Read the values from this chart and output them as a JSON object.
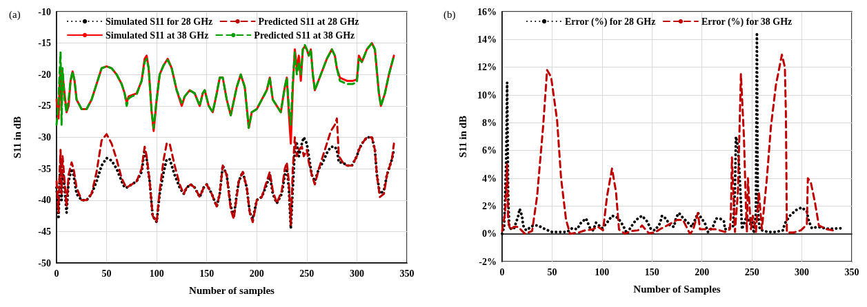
{
  "chart_data": [
    {
      "type": "line",
      "title": "(a)",
      "xlabel": "Number of samples",
      "ylabel": "S11 in dB",
      "xlim": [
        0,
        350
      ],
      "xticks": [
        0,
        50,
        100,
        150,
        200,
        250,
        300,
        350
      ],
      "ylim": [
        -50,
        -10
      ],
      "yticks": [
        -50,
        -45,
        -40,
        -35,
        -30,
        -25,
        -20,
        -15,
        -10
      ],
      "grid": true,
      "legend": "top",
      "marker": "none",
      "series": [
        {
          "name": "Simulated S11 for 28 GHz",
          "color": "#000000",
          "line_style": "dotted",
          "x": [
            0,
            2,
            3,
            4,
            5,
            6,
            8,
            10,
            12,
            15,
            17,
            20,
            25,
            30,
            35,
            40,
            45,
            50,
            55,
            60,
            65,
            68,
            70,
            75,
            80,
            85,
            88,
            90,
            93,
            96,
            100,
            103,
            107,
            110,
            113,
            118,
            123,
            127,
            130,
            134,
            138,
            143,
            147,
            150,
            155,
            160,
            163,
            166,
            170,
            174,
            177,
            182,
            186,
            190,
            193,
            196,
            200,
            205,
            210,
            213,
            216,
            220,
            225,
            228,
            230,
            232,
            234,
            236,
            238,
            240,
            242,
            245,
            247,
            250,
            252,
            255,
            258,
            262,
            266,
            270,
            274,
            278,
            280,
            282,
            286,
            290,
            295,
            300,
            302,
            305,
            310,
            315,
            318,
            320,
            323,
            327,
            330,
            335,
            337
          ],
          "values": [
            -38,
            -43,
            -37,
            -34,
            -40,
            -35,
            -38,
            -42,
            -37,
            -35,
            -36,
            -39,
            -40,
            -40,
            -39,
            -37,
            -34.5,
            -33.3,
            -33.7,
            -35,
            -37,
            -38,
            -38,
            -37.5,
            -37,
            -35.5,
            -32,
            -33.5,
            -37,
            -42.5,
            -43.5,
            -39,
            -35.5,
            -33.5,
            -33.5,
            -36,
            -38,
            -39,
            -38,
            -37.5,
            -38,
            -39.5,
            -38,
            -37.5,
            -39,
            -41,
            -39,
            -34.5,
            -36,
            -41,
            -42.5,
            -37,
            -35.5,
            -38,
            -42,
            -43,
            -40,
            -39.5,
            -37.5,
            -36,
            -39,
            -40.5,
            -39,
            -36,
            -35,
            -38,
            -44.5,
            -38,
            -32,
            -31,
            -33,
            -31,
            -30,
            -31,
            -33,
            -36,
            -37,
            -35,
            -34,
            -32.5,
            -31.5,
            -31.5,
            -32,
            -34,
            -34,
            -34.5,
            -34.5,
            -33,
            -32,
            -31,
            -30,
            -30,
            -32,
            -36,
            -39,
            -38.5,
            -36,
            -33.5,
            -32
          ]
        },
        {
          "name": "Predicted S11 at 28 GHz",
          "color": "#c00000",
          "line_style": "dashed",
          "x": [
            0,
            2,
            3,
            4,
            5,
            6,
            8,
            10,
            12,
            15,
            17,
            20,
            25,
            30,
            35,
            40,
            45,
            50,
            55,
            60,
            65,
            68,
            70,
            75,
            80,
            85,
            88,
            90,
            93,
            96,
            100,
            103,
            107,
            110,
            113,
            118,
            123,
            127,
            130,
            134,
            138,
            143,
            147,
            150,
            155,
            160,
            163,
            166,
            170,
            174,
            177,
            182,
            186,
            190,
            193,
            196,
            200,
            205,
            210,
            213,
            216,
            220,
            225,
            228,
            230,
            232,
            234,
            236,
            238,
            240,
            242,
            245,
            247,
            250,
            252,
            255,
            258,
            262,
            266,
            270,
            274,
            278,
            280,
            282,
            286,
            290,
            295,
            300,
            302,
            305,
            310,
            315,
            318,
            320,
            323,
            327,
            330,
            335,
            337
          ],
          "values": [
            -37,
            -42,
            -36,
            -32,
            -39,
            -33,
            -37,
            -41,
            -36,
            -34,
            -35,
            -38,
            -40,
            -40,
            -39,
            -35.5,
            -30.5,
            -29.5,
            -31,
            -33.5,
            -36.5,
            -37.5,
            -38,
            -37.5,
            -37,
            -35,
            -31.5,
            -33,
            -37,
            -42.5,
            -43.5,
            -38.5,
            -33.5,
            -31,
            -31,
            -34.5,
            -37.5,
            -39,
            -38,
            -37.5,
            -38,
            -39.5,
            -38,
            -37.5,
            -39,
            -41,
            -39,
            -34.5,
            -36,
            -41.5,
            -43,
            -37,
            -35.5,
            -38,
            -42,
            -43.5,
            -40,
            -39.5,
            -37,
            -35.5,
            -38.5,
            -40.5,
            -38.5,
            -35,
            -34,
            -37,
            -44,
            -35,
            -30,
            -33,
            -32,
            -31.5,
            -33,
            -32,
            -34,
            -36,
            -37.5,
            -35,
            -33,
            -31,
            -29,
            -28,
            -27,
            -33,
            -34,
            -34.5,
            -34.5,
            -33,
            -32,
            -31,
            -30,
            -30,
            -32,
            -36,
            -39.5,
            -39,
            -36,
            -33.5,
            -31
          ]
        },
        {
          "name": "Simulated S11 at 38 GHz",
          "color": "#ff0000",
          "line_style": "solid",
          "x": [
            0,
            2,
            3,
            4,
            5,
            6,
            8,
            10,
            12,
            14,
            16,
            18,
            20,
            25,
            30,
            35,
            40,
            45,
            50,
            55,
            60,
            65,
            68,
            70,
            72,
            75,
            80,
            85,
            88,
            90,
            92,
            95,
            97,
            100,
            103,
            107,
            111,
            115,
            120,
            125,
            128,
            133,
            138,
            143,
            146,
            148,
            152,
            156,
            160,
            163,
            166,
            170,
            174,
            180,
            184,
            188,
            192,
            195,
            200,
            205,
            210,
            213,
            216,
            220,
            224,
            228,
            230,
            232,
            234,
            236,
            238,
            240,
            242,
            244,
            246,
            248,
            250,
            252,
            254,
            256,
            258,
            264,
            270,
            275,
            278,
            280,
            283,
            290,
            296,
            300,
            302,
            305,
            310,
            315,
            318,
            322,
            324,
            328,
            332,
            337
          ],
          "values": [
            -24,
            -27,
            -22,
            -19,
            -25,
            -20,
            -23,
            -26,
            -25,
            -21,
            -19.5,
            -21,
            -24,
            -25.5,
            -25.5,
            -24,
            -21.5,
            -19,
            -18.7,
            -19,
            -20,
            -21.5,
            -23,
            -24.5,
            -23.5,
            -23.3,
            -23,
            -21,
            -17.5,
            -17,
            -19,
            -26,
            -29,
            -24,
            -20,
            -18.5,
            -17.5,
            -19,
            -22.5,
            -25,
            -23.5,
            -22.5,
            -23,
            -25,
            -23,
            -22.5,
            -25,
            -26,
            -23,
            -20.5,
            -20.5,
            -24,
            -26.5,
            -22,
            -20,
            -22,
            -28.5,
            -26,
            -25.5,
            -24,
            -22.5,
            -20.5,
            -24,
            -25,
            -26,
            -22,
            -20.5,
            -26,
            -31,
            -22,
            -16,
            -19,
            -17,
            -21,
            -16,
            -15.5,
            -16,
            -17,
            -16,
            -20,
            -22.5,
            -20,
            -17.5,
            -16,
            -17,
            -19,
            -20.5,
            -21,
            -21,
            -20.8,
            -17,
            -18,
            -16,
            -15,
            -16,
            -23,
            -25,
            -23,
            -20,
            -17
          ]
        },
        {
          "name": "Predicted S11 at 38 GHz",
          "color": "#00a000",
          "line_style": "dashed",
          "x": [
            0,
            2,
            3,
            4,
            5,
            6,
            8,
            10,
            12,
            14,
            16,
            18,
            20,
            25,
            30,
            35,
            40,
            45,
            50,
            55,
            60,
            65,
            68,
            70,
            72,
            75,
            80,
            85,
            88,
            90,
            92,
            95,
            97,
            100,
            103,
            107,
            111,
            115,
            120,
            125,
            128,
            133,
            138,
            143,
            146,
            148,
            152,
            156,
            160,
            163,
            166,
            170,
            174,
            180,
            184,
            188,
            192,
            195,
            200,
            205,
            210,
            213,
            216,
            220,
            224,
            228,
            230,
            232,
            234,
            236,
            238,
            240,
            242,
            244,
            246,
            248,
            250,
            252,
            254,
            256,
            258,
            264,
            270,
            275,
            278,
            280,
            283,
            290,
            296,
            300,
            302,
            305,
            310,
            315,
            318,
            322,
            324,
            328,
            332,
            337
          ],
          "values": [
            -28,
            -24,
            -20,
            -16.5,
            -28,
            -19,
            -24,
            -26,
            -24,
            -21,
            -19.5,
            -21,
            -24,
            -25.5,
            -25.5,
            -24,
            -21.5,
            -19,
            -18.7,
            -19,
            -20,
            -21.5,
            -23,
            -25,
            -23.8,
            -23.5,
            -23.2,
            -21,
            -18,
            -17.5,
            -19,
            -26,
            -28.5,
            -24,
            -20,
            -18.5,
            -17.7,
            -19,
            -22.5,
            -24.5,
            -23.5,
            -22.5,
            -23,
            -25,
            -23,
            -22.5,
            -25,
            -26,
            -23,
            -20.5,
            -20.5,
            -24,
            -26.5,
            -22,
            -20,
            -22,
            -28.5,
            -26,
            -25.5,
            -24,
            -22.5,
            -20.5,
            -24,
            -25,
            -26,
            -22,
            -20.5,
            -25,
            -28,
            -21,
            -16.5,
            -20,
            -18,
            -20,
            -16,
            -15.3,
            -16,
            -17,
            -16,
            -20,
            -22.5,
            -20,
            -17.5,
            -16,
            -17,
            -19,
            -21,
            -21.5,
            -21.5,
            -21.2,
            -17.5,
            -18,
            -16,
            -15,
            -16,
            -23,
            -25,
            -23,
            -20,
            -17
          ]
        }
      ]
    },
    {
      "type": "line",
      "title": "(b)",
      "xlabel": "Number of Samples",
      "ylabel": "S11 in dB",
      "xlim": [
        0,
        350
      ],
      "xticks": [
        0,
        50,
        100,
        150,
        200,
        250,
        300,
        350
      ],
      "ylim": [
        -2,
        16
      ],
      "yticks": [
        {
          "value": -2,
          "label": "-2%"
        },
        {
          "value": 0,
          "label": "0%"
        },
        {
          "value": 2,
          "label": "2%"
        },
        {
          "value": 4,
          "label": "4%"
        },
        {
          "value": 6,
          "label": "6%"
        },
        {
          "value": 8,
          "label": "8%"
        },
        {
          "value": 10,
          "label": "10%"
        },
        {
          "value": 12,
          "label": "12%"
        },
        {
          "value": 14,
          "label": "14%"
        },
        {
          "value": 16,
          "label": "16%"
        }
      ],
      "grid": true,
      "legend": "top",
      "marker": "none",
      "series": [
        {
          "name": "Error (%) for 28 GHz",
          "color": "#000000",
          "line_style": "dotted",
          "x": [
            0,
            2,
            4,
            5,
            6,
            7,
            9,
            12,
            16,
            17.5,
            20,
            21,
            24,
            31,
            36,
            43,
            50,
            57,
            65,
            70,
            75,
            79,
            84,
            88,
            91,
            94,
            100,
            105,
            110,
            116,
            121,
            125,
            129,
            134,
            140,
            145,
            149,
            153,
            158,
            160,
            164,
            168,
            172,
            174,
            177,
            181,
            186,
            190,
            196,
            203,
            206,
            211,
            214,
            218,
            222,
            223,
            227,
            231,
            232,
            233,
            234,
            236,
            237,
            238,
            239,
            240,
            245,
            249,
            250,
            252,
            254,
            255,
            255.5,
            256,
            257,
            258,
            266,
            274,
            281,
            283,
            288,
            294,
            300,
            305,
            307,
            310,
            316,
            325,
            332,
            339
          ],
          "values": [
            0,
            0.5,
            5,
            10.9,
            3,
            0.6,
            0.33,
            0.4,
            1.25,
            1.8,
            1.25,
            0.6,
            0.25,
            0.6,
            0.6,
            0.33,
            0.13,
            0.13,
            0.13,
            0.4,
            0.33,
            0.8,
            1.1,
            0.4,
            0.25,
            0.8,
            0.4,
            0.8,
            1.3,
            1.15,
            0.6,
            0,
            0.5,
            1,
            1.3,
            0.9,
            0.33,
            0.25,
            0.75,
            1.3,
            1.1,
            0.6,
            0.5,
            1.15,
            1.5,
            1.15,
            0.8,
            0.5,
            1.5,
            0.75,
            0.13,
            0.5,
            1.1,
            1.1,
            0.9,
            0.33,
            0.4,
            0.5,
            1.8,
            3.1,
            7,
            6.3,
            5,
            3.7,
            2.3,
            0.33,
            1.3,
            0.6,
            1.25,
            0.03,
            1.5,
            14.5,
            7,
            2,
            0.8,
            0.3,
            0.13,
            0.13,
            0.25,
            0.75,
            1.3,
            1.7,
            1.9,
            1.6,
            0.9,
            0.4,
            0.5,
            0.37,
            0.37,
            0.4
          ]
        },
        {
          "name": "Error (%) for 38 GHz",
          "color": "#c00000",
          "line_style": "dashed",
          "x": [
            0,
            3,
            5,
            6,
            8,
            12,
            16,
            20,
            23,
            30,
            35,
            41,
            45,
            49,
            55,
            59,
            64,
            68,
            77,
            83,
            90,
            96,
            101,
            105,
            110,
            114,
            117,
            123,
            129,
            136,
            140,
            147,
            153,
            158,
            167,
            175,
            181,
            188,
            191,
            196,
            198,
            207,
            214,
            223,
            228,
            229,
            230,
            233,
            236,
            239,
            242,
            244,
            245,
            246,
            249,
            251,
            254,
            257,
            260,
            265,
            269,
            274,
            280,
            283,
            284,
            285,
            292,
            299,
            305,
            306,
            309,
            313,
            317,
            325,
            331
          ],
          "values": [
            0.2,
            1.5,
            5,
            1,
            0.3,
            0.5,
            0.5,
            0.2,
            0,
            0.2,
            2.7,
            7.7,
            11.8,
            11.3,
            8.2,
            4,
            1,
            0,
            0.1,
            0.25,
            0.3,
            0.5,
            0.25,
            2.7,
            4.7,
            3,
            0.3,
            0,
            0.2,
            0.25,
            0.6,
            0.03,
            0.1,
            0.33,
            0.67,
            1,
            1,
            0,
            0.25,
            1.5,
            0.33,
            0.33,
            0.33,
            0.13,
            0.33,
            1.5,
            5.5,
            0.13,
            3,
            11.5,
            7,
            2,
            0.1,
            4,
            0.33,
            1.3,
            0.13,
            3,
            0.33,
            4,
            7.7,
            10.7,
            12.9,
            12,
            8.7,
            0.1,
            0.1,
            0.25,
            0.67,
            4,
            3.7,
            2.3,
            0.6,
            0.33,
            0.25
          ]
        }
      ]
    }
  ]
}
